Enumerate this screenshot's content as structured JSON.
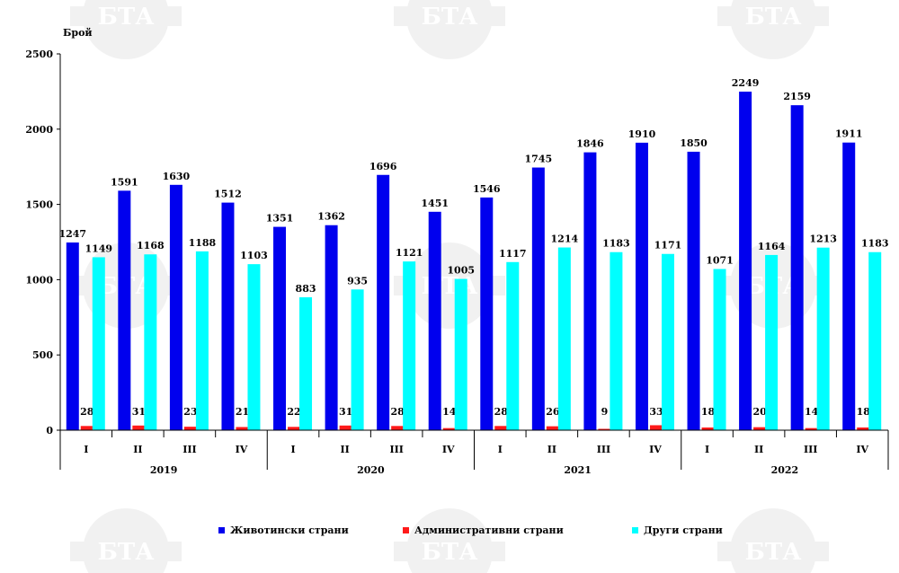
{
  "chart_data": {
    "type": "bar",
    "ylabel": "Брой",
    "ylim": [
      0,
      2500
    ],
    "yticks": [
      0,
      500,
      1000,
      1500,
      2000,
      2500
    ],
    "categories": [
      "I",
      "II",
      "III",
      "IV",
      "I",
      "II",
      "III",
      "IV",
      "I",
      "II",
      "III",
      "IV",
      "I",
      "II",
      "III",
      "IV"
    ],
    "year_groups": [
      {
        "label": "2019",
        "span": 4
      },
      {
        "label": "2020",
        "span": 4
      },
      {
        "label": "2021",
        "span": 4
      },
      {
        "label": "2022",
        "span": 4
      }
    ],
    "series": [
      {
        "name": "Животински страни",
        "color": "#0000ee",
        "values": [
          1247,
          1591,
          1630,
          1512,
          1351,
          1362,
          1696,
          1451,
          1546,
          1745,
          1846,
          1910,
          1850,
          2249,
          2159,
          1911
        ]
      },
      {
        "name": "Административни страни",
        "color": "#ff1a1a",
        "values": [
          28,
          31,
          23,
          21,
          22,
          31,
          28,
          14,
          28,
          26,
          9,
          33,
          18,
          20,
          14,
          18
        ]
      },
      {
        "name": "Други страни",
        "color": "#00ffff",
        "values": [
          1149,
          1168,
          1188,
          1103,
          883,
          935,
          1121,
          1005,
          1117,
          1214,
          1183,
          1171,
          1071,
          1164,
          1213,
          1183
        ]
      }
    ],
    "grid": false,
    "legend_position": "bottom"
  },
  "watermark": {
    "text": "БТА"
  }
}
